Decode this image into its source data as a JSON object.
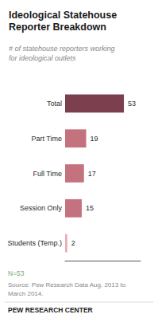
{
  "chart_data": {
    "type": "bar",
    "orientation": "horizontal",
    "title": "Ideological Statehouse\nReporter Breakdown",
    "subtitle": "# of statehouse reporters working\nfor ideological outlets",
    "categories": [
      "Total",
      "Part Time",
      "Full Time",
      "Session Only",
      "Students (Temp.)"
    ],
    "values": [
      53,
      19,
      17,
      15,
      2
    ],
    "colors": [
      "#7b3f4e",
      "#c4737e",
      "#c4737e",
      "#c4737e",
      "#e8b0b5"
    ],
    "xlim": [
      0,
      68
    ],
    "data_labels": true,
    "tick_labels": "y",
    "grid": false,
    "annotations": [
      "N=53",
      "Source: Pew Research Data Aug. 2013 to\nMarch 2014.",
      "PEW RESEARCH CENTER"
    ]
  }
}
